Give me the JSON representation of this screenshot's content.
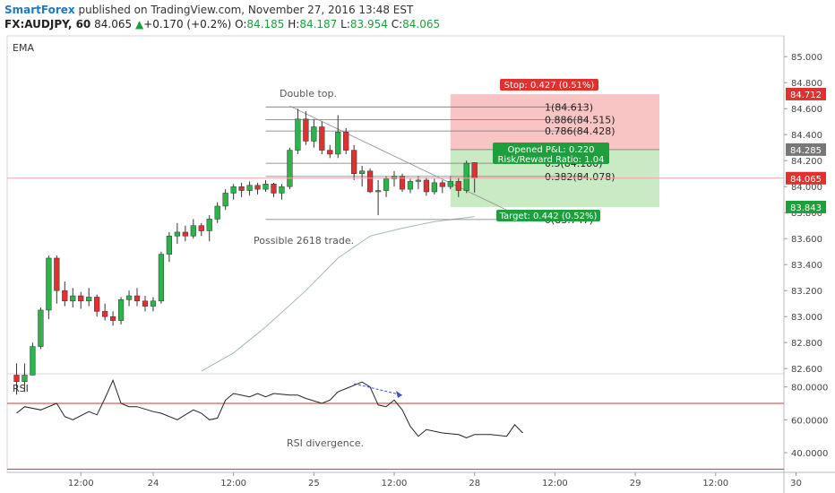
{
  "header": {
    "brand": "SmartForex",
    "published_text": "published on TradingView.com, November 27, 2016 13:48 EST",
    "symbol": "FX:AUDJPY, 60",
    "last": "84.065",
    "change": "+0.170 (+0.2%)",
    "o_label": "O:",
    "o_value": "84.185",
    "h_label": "H:",
    "h_value": "84.187",
    "l_label": "L:",
    "l_value": "83.954",
    "c_label": "C:",
    "c_value": "84.065"
  },
  "colors": {
    "up": "#2cb34a",
    "down": "#e03030",
    "stop_zone": "#f9c4c4",
    "target_zone": "#c9ebc4",
    "ema": "#9fb7bb",
    "rsi": "#222222",
    "rsi_levels": "#e03030",
    "price_line": "#f0a5a5"
  },
  "chart_data": [
    {
      "type": "candlestick",
      "indicator_label": "EMA",
      "ylim": [
        82.56,
        85.16
      ],
      "y_ticks": [
        "85.000",
        "84.800",
        "84.600",
        "84.400",
        "84.200",
        "84.000",
        "83.800",
        "83.600",
        "83.400",
        "83.200",
        "83.000",
        "82.800",
        "82.600"
      ],
      "x_ticks": [
        "12:00",
        "24",
        "12:00",
        "25",
        "12:00",
        "28",
        "12:00",
        "29",
        "12:00",
        "30"
      ],
      "candles": [
        {
          "o": 82.55,
          "h": 82.64,
          "l": 82.4,
          "c": 82.5
        },
        {
          "o": 82.5,
          "h": 82.64,
          "l": 82.42,
          "c": 82.55
        },
        {
          "o": 82.55,
          "h": 82.8,
          "l": 82.55,
          "c": 82.77
        },
        {
          "o": 82.77,
          "h": 83.07,
          "l": 82.75,
          "c": 83.05
        },
        {
          "o": 83.05,
          "h": 83.47,
          "l": 82.98,
          "c": 83.45
        },
        {
          "o": 83.45,
          "h": 83.47,
          "l": 83.1,
          "c": 83.2
        },
        {
          "o": 83.2,
          "h": 83.27,
          "l": 83.08,
          "c": 83.12
        },
        {
          "o": 83.12,
          "h": 83.22,
          "l": 83.07,
          "c": 83.16
        },
        {
          "o": 83.16,
          "h": 83.19,
          "l": 83.06,
          "c": 83.12
        },
        {
          "o": 83.12,
          "h": 83.22,
          "l": 83.08,
          "c": 83.15
        },
        {
          "o": 83.15,
          "h": 83.17,
          "l": 83.0,
          "c": 83.04
        },
        {
          "o": 83.04,
          "h": 83.1,
          "l": 82.97,
          "c": 83.0
        },
        {
          "o": 83.0,
          "h": 83.04,
          "l": 82.93,
          "c": 82.97
        },
        {
          "o": 82.97,
          "h": 83.15,
          "l": 82.94,
          "c": 83.13
        },
        {
          "o": 83.13,
          "h": 83.2,
          "l": 83.08,
          "c": 83.16
        },
        {
          "o": 83.16,
          "h": 83.22,
          "l": 83.08,
          "c": 83.12
        },
        {
          "o": 83.12,
          "h": 83.16,
          "l": 83.04,
          "c": 83.08
        },
        {
          "o": 83.08,
          "h": 83.15,
          "l": 83.04,
          "c": 83.12
        },
        {
          "o": 83.12,
          "h": 83.5,
          "l": 83.1,
          "c": 83.48
        },
        {
          "o": 83.48,
          "h": 83.65,
          "l": 83.42,
          "c": 83.62
        },
        {
          "o": 83.62,
          "h": 83.72,
          "l": 83.56,
          "c": 83.65
        },
        {
          "o": 83.65,
          "h": 83.7,
          "l": 83.58,
          "c": 83.62
        },
        {
          "o": 83.62,
          "h": 83.75,
          "l": 83.6,
          "c": 83.7
        },
        {
          "o": 83.7,
          "h": 83.72,
          "l": 83.62,
          "c": 83.66
        },
        {
          "o": 83.66,
          "h": 83.78,
          "l": 83.58,
          "c": 83.75
        },
        {
          "o": 83.75,
          "h": 83.88,
          "l": 83.72,
          "c": 83.85
        },
        {
          "o": 83.85,
          "h": 83.98,
          "l": 83.82,
          "c": 83.95
        },
        {
          "o": 83.95,
          "h": 84.02,
          "l": 83.9,
          "c": 84.0
        },
        {
          "o": 84.0,
          "h": 84.03,
          "l": 83.92,
          "c": 83.97
        },
        {
          "o": 83.97,
          "h": 84.04,
          "l": 83.93,
          "c": 84.01
        },
        {
          "o": 84.01,
          "h": 84.03,
          "l": 83.94,
          "c": 83.98
        },
        {
          "o": 83.98,
          "h": 84.05,
          "l": 83.96,
          "c": 84.02
        },
        {
          "o": 84.02,
          "h": 84.03,
          "l": 83.92,
          "c": 83.95
        },
        {
          "o": 83.95,
          "h": 84.02,
          "l": 83.9,
          "c": 84.0
        },
        {
          "o": 84.0,
          "h": 84.3,
          "l": 83.98,
          "c": 84.28
        },
        {
          "o": 84.28,
          "h": 84.6,
          "l": 84.25,
          "c": 84.52
        },
        {
          "o": 84.52,
          "h": 84.58,
          "l": 84.32,
          "c": 84.35
        },
        {
          "o": 84.35,
          "h": 84.52,
          "l": 84.3,
          "c": 84.46
        },
        {
          "o": 84.46,
          "h": 84.5,
          "l": 84.25,
          "c": 84.28
        },
        {
          "o": 84.28,
          "h": 84.32,
          "l": 84.22,
          "c": 84.25
        },
        {
          "o": 84.25,
          "h": 84.55,
          "l": 84.22,
          "c": 84.42
        },
        {
          "o": 84.42,
          "h": 84.45,
          "l": 84.25,
          "c": 84.28
        },
        {
          "o": 84.28,
          "h": 84.32,
          "l": 84.05,
          "c": 84.1
        },
        {
          "o": 84.1,
          "h": 84.16,
          "l": 84.0,
          "c": 84.12
        },
        {
          "o": 84.12,
          "h": 84.14,
          "l": 83.95,
          "c": 83.96
        },
        {
          "o": 83.96,
          "h": 84.05,
          "l": 83.78,
          "c": 83.97
        },
        {
          "o": 83.97,
          "h": 84.08,
          "l": 83.92,
          "c": 84.06
        },
        {
          "o": 84.06,
          "h": 84.12,
          "l": 84.0,
          "c": 84.08
        },
        {
          "o": 84.08,
          "h": 84.1,
          "l": 83.96,
          "c": 83.98
        },
        {
          "o": 83.98,
          "h": 84.06,
          "l": 83.95,
          "c": 84.04
        },
        {
          "o": 84.04,
          "h": 84.08,
          "l": 83.98,
          "c": 84.05
        },
        {
          "o": 84.05,
          "h": 84.07,
          "l": 83.93,
          "c": 83.96
        },
        {
          "o": 83.96,
          "h": 84.06,
          "l": 83.94,
          "c": 84.03
        },
        {
          "o": 84.03,
          "h": 84.05,
          "l": 83.95,
          "c": 84.0
        },
        {
          "o": 84.0,
          "h": 84.08,
          "l": 83.98,
          "c": 84.04
        },
        {
          "o": 84.04,
          "h": 84.07,
          "l": 83.92,
          "c": 83.97
        },
        {
          "o": 83.97,
          "h": 84.2,
          "l": 83.95,
          "c": 84.18
        },
        {
          "o": 84.185,
          "h": 84.187,
          "l": 83.954,
          "c": 84.065
        }
      ],
      "ema": [
        {
          "i": 23,
          "v": 82.58
        },
        {
          "i": 27,
          "v": 82.72
        },
        {
          "i": 31,
          "v": 82.92
        },
        {
          "i": 36,
          "v": 83.2
        },
        {
          "i": 40,
          "v": 83.45
        },
        {
          "i": 44,
          "v": 83.62
        },
        {
          "i": 48,
          "v": 83.68
        },
        {
          "i": 52,
          "v": 83.73
        },
        {
          "i": 57,
          "v": 83.77
        }
      ],
      "fib_levels": [
        {
          "label": "1(84.613)",
          "value": 84.613
        },
        {
          "label": "0.886(84.515)",
          "value": 84.515
        },
        {
          "label": "0.786(84.428)",
          "value": 84.428
        },
        {
          "label": "0.5(84.180)",
          "value": 84.18
        },
        {
          "label": "0.382(84.078)",
          "value": 84.078
        },
        {
          "label": "0(83.747)",
          "value": 83.747
        }
      ],
      "position": {
        "entry": 84.285,
        "stop": 84.712,
        "target": 83.843,
        "stop_label": "Stop: 0.427 (0.51%)",
        "target_label": "Target: 0.442 (0.52%)",
        "pnl_label": "Opened P&L: 0.220",
        "rr_label": "Risk/Reward Ratio: 1.04"
      },
      "price_tags": [
        {
          "text": "84.712",
          "value": 84.712,
          "color": "#e03030"
        },
        {
          "text": "84.285",
          "value": 84.285,
          "color": "#777777"
        },
        {
          "text": "84.065",
          "value": 84.065,
          "color": "#e03030"
        },
        {
          "text": "83.843",
          "value": 83.843,
          "color": "#1aa13a"
        }
      ],
      "trendline": [
        {
          "i": 34,
          "v": 84.62
        },
        {
          "i": 61,
          "v": 83.82
        }
      ],
      "annotations": [
        "Double top.",
        "Possible 2618 trade."
      ]
    },
    {
      "type": "line",
      "indicator_label": "RSI",
      "ylim": [
        28,
        88
      ],
      "y_ticks": [
        "80.0000",
        "60.0000",
        "40.0000"
      ],
      "levels": [
        70,
        30
      ],
      "values": [
        {
          "i": 0,
          "v": 64
        },
        {
          "i": 1,
          "v": 68
        },
        {
          "i": 3,
          "v": 66
        },
        {
          "i": 5,
          "v": 70
        },
        {
          "i": 6,
          "v": 62
        },
        {
          "i": 7,
          "v": 60
        },
        {
          "i": 9,
          "v": 65
        },
        {
          "i": 10,
          "v": 63
        },
        {
          "i": 11,
          "v": 73
        },
        {
          "i": 12,
          "v": 84
        },
        {
          "i": 13,
          "v": 70
        },
        {
          "i": 14,
          "v": 68
        },
        {
          "i": 15,
          "v": 68
        },
        {
          "i": 17,
          "v": 65
        },
        {
          "i": 18,
          "v": 64
        },
        {
          "i": 20,
          "v": 60
        },
        {
          "i": 21,
          "v": 63
        },
        {
          "i": 22,
          "v": 66
        },
        {
          "i": 23,
          "v": 64
        },
        {
          "i": 24,
          "v": 60
        },
        {
          "i": 25,
          "v": 61
        },
        {
          "i": 26,
          "v": 72
        },
        {
          "i": 27,
          "v": 76
        },
        {
          "i": 29,
          "v": 74
        },
        {
          "i": 30,
          "v": 76
        },
        {
          "i": 31,
          "v": 74
        },
        {
          "i": 32,
          "v": 76
        },
        {
          "i": 34,
          "v": 75
        },
        {
          "i": 35,
          "v": 75
        },
        {
          "i": 36,
          "v": 73
        },
        {
          "i": 38,
          "v": 70
        },
        {
          "i": 39,
          "v": 72
        },
        {
          "i": 40,
          "v": 77
        },
        {
          "i": 41,
          "v": 79
        },
        {
          "i": 43,
          "v": 83
        },
        {
          "i": 44,
          "v": 80
        },
        {
          "i": 45,
          "v": 69
        },
        {
          "i": 46,
          "v": 68
        },
        {
          "i": 47,
          "v": 72
        },
        {
          "i": 48,
          "v": 66
        },
        {
          "i": 49,
          "v": 56
        },
        {
          "i": 50,
          "v": 50
        },
        {
          "i": 51,
          "v": 54
        },
        {
          "i": 53,
          "v": 52
        },
        {
          "i": 55,
          "v": 51
        },
        {
          "i": 56,
          "v": 49
        },
        {
          "i": 57,
          "v": 51
        },
        {
          "i": 59,
          "v": 51
        },
        {
          "i": 61,
          "v": 50
        },
        {
          "i": 62,
          "v": 57
        },
        {
          "i": 63,
          "v": 52
        }
      ],
      "divergence_arrow": [
        {
          "i": 42,
          "v": 82
        },
        {
          "i": 48,
          "v": 75
        }
      ],
      "annotations": [
        "RSI divergence."
      ]
    }
  ]
}
